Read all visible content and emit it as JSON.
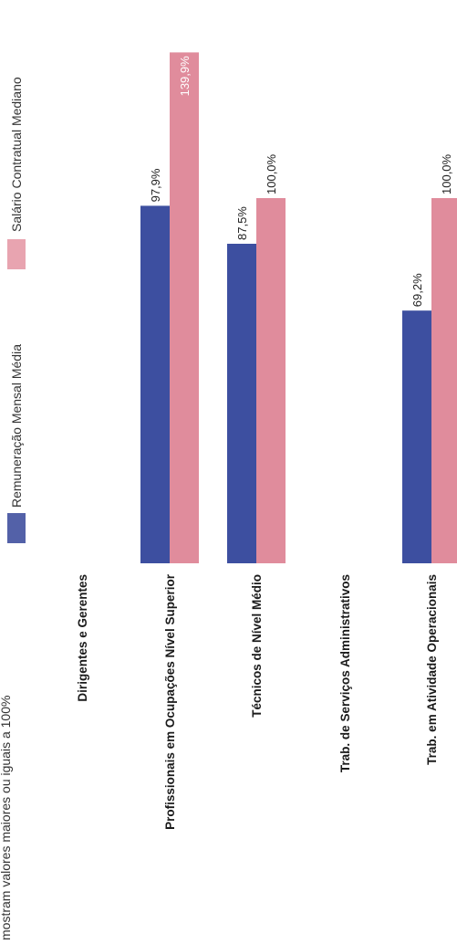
{
  "chart_data": {
    "type": "bar",
    "note": "mostram valores maiores ou iguais a 100%",
    "categories": [
      "Dirigentes e Gerentes",
      "Profissionais em Ocupações Nível Superior",
      "Técnicos de Nível Médio",
      "Trab. de Serviços Administrativos",
      "Trab. em Atividade Operacionais"
    ],
    "series": [
      {
        "name": "Remuneração Mensal Média",
        "color": "#3d4fa0",
        "values": [
          null,
          97.9,
          87.5,
          null,
          69.2
        ],
        "labels": [
          "",
          "97,9%",
          "87,5%",
          "",
          "69,2%"
        ]
      },
      {
        "name": "Salário Contratual Mediano",
        "color": "#e08c9c",
        "values": [
          null,
          139.9,
          100.0,
          null,
          100.0
        ],
        "labels": [
          "",
          "139,9%",
          "100,0%",
          "",
          "100,0%"
        ]
      }
    ],
    "ylim": [
      0,
      150
    ],
    "legend_position": "top",
    "grid": false
  }
}
